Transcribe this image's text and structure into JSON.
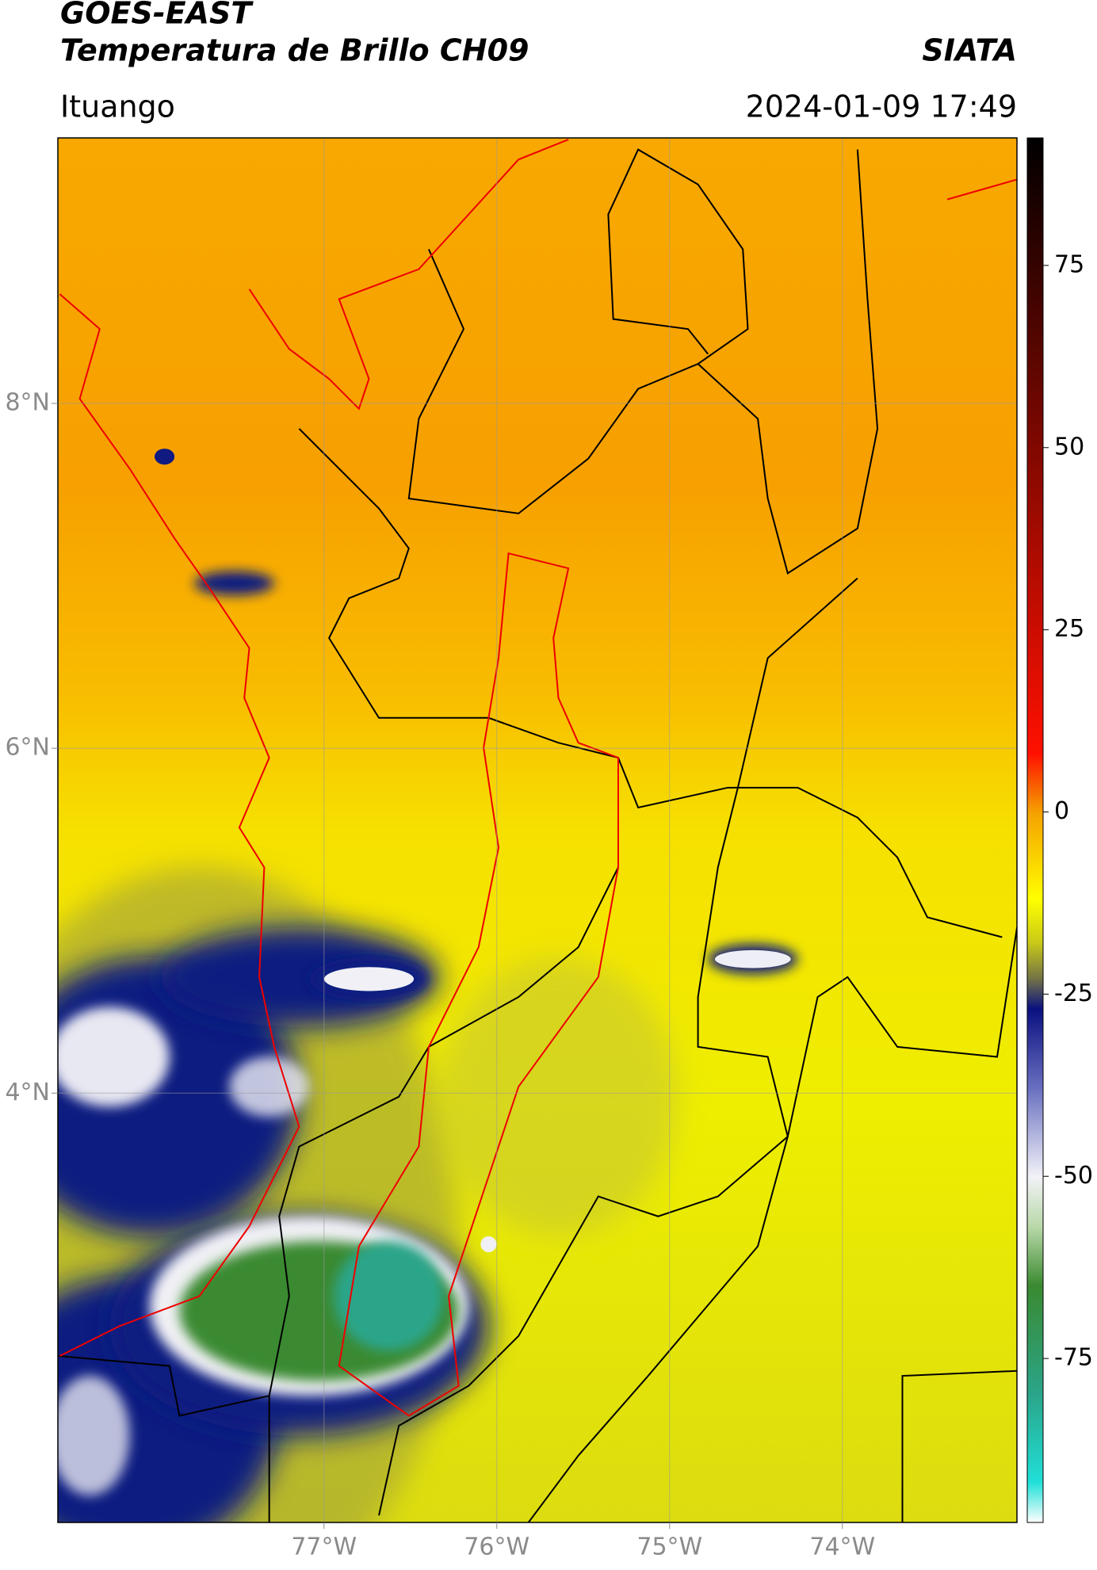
{
  "chart_data": {
    "type": "map",
    "title": "GOES-EAST",
    "subtitle": "Temperatura de Brillo CH09",
    "source": "SIATA",
    "location": "Ituango",
    "datetime": "2024-01-09 17:49",
    "xlim": [
      -78.54,
      -72.99
    ],
    "ylim": [
      1.51,
      9.54
    ],
    "xticks": [
      {
        "value": -77,
        "label": "77°W"
      },
      {
        "value": -76,
        "label": "76°W"
      },
      {
        "value": -75,
        "label": "75°W"
      },
      {
        "value": -74,
        "label": "74°W"
      }
    ],
    "yticks": [
      {
        "value": 8,
        "label": "8°N"
      },
      {
        "value": 6,
        "label": "6°N"
      },
      {
        "value": 4,
        "label": "4°N"
      }
    ],
    "grid": true,
    "colorbar": {
      "lim": [
        -97.5,
        92.5
      ],
      "ticks": [
        75,
        50,
        25,
        0,
        -25,
        -50,
        -75
      ],
      "colormap": [
        {
          "value": -97.5,
          "color": "#ffffff"
        },
        {
          "value": -92,
          "color": "#20e0d8"
        },
        {
          "value": -80,
          "color": "#2aa58a"
        },
        {
          "value": -65,
          "color": "#3a8a30"
        },
        {
          "value": -57,
          "color": "#b8d8a8"
        },
        {
          "value": -50,
          "color": "#f2f2f8"
        },
        {
          "value": -38,
          "color": "#6a70c0"
        },
        {
          "value": -27,
          "color": "#0a1080"
        },
        {
          "value": -23,
          "color": "#707048"
        },
        {
          "value": -18,
          "color": "#c8c818"
        },
        {
          "value": -12,
          "color": "#ffff00"
        },
        {
          "value": 0,
          "color": "#f5a000"
        },
        {
          "value": 8,
          "color": "#ff1000"
        },
        {
          "value": 92.5,
          "color": "#000000"
        }
      ]
    }
  }
}
